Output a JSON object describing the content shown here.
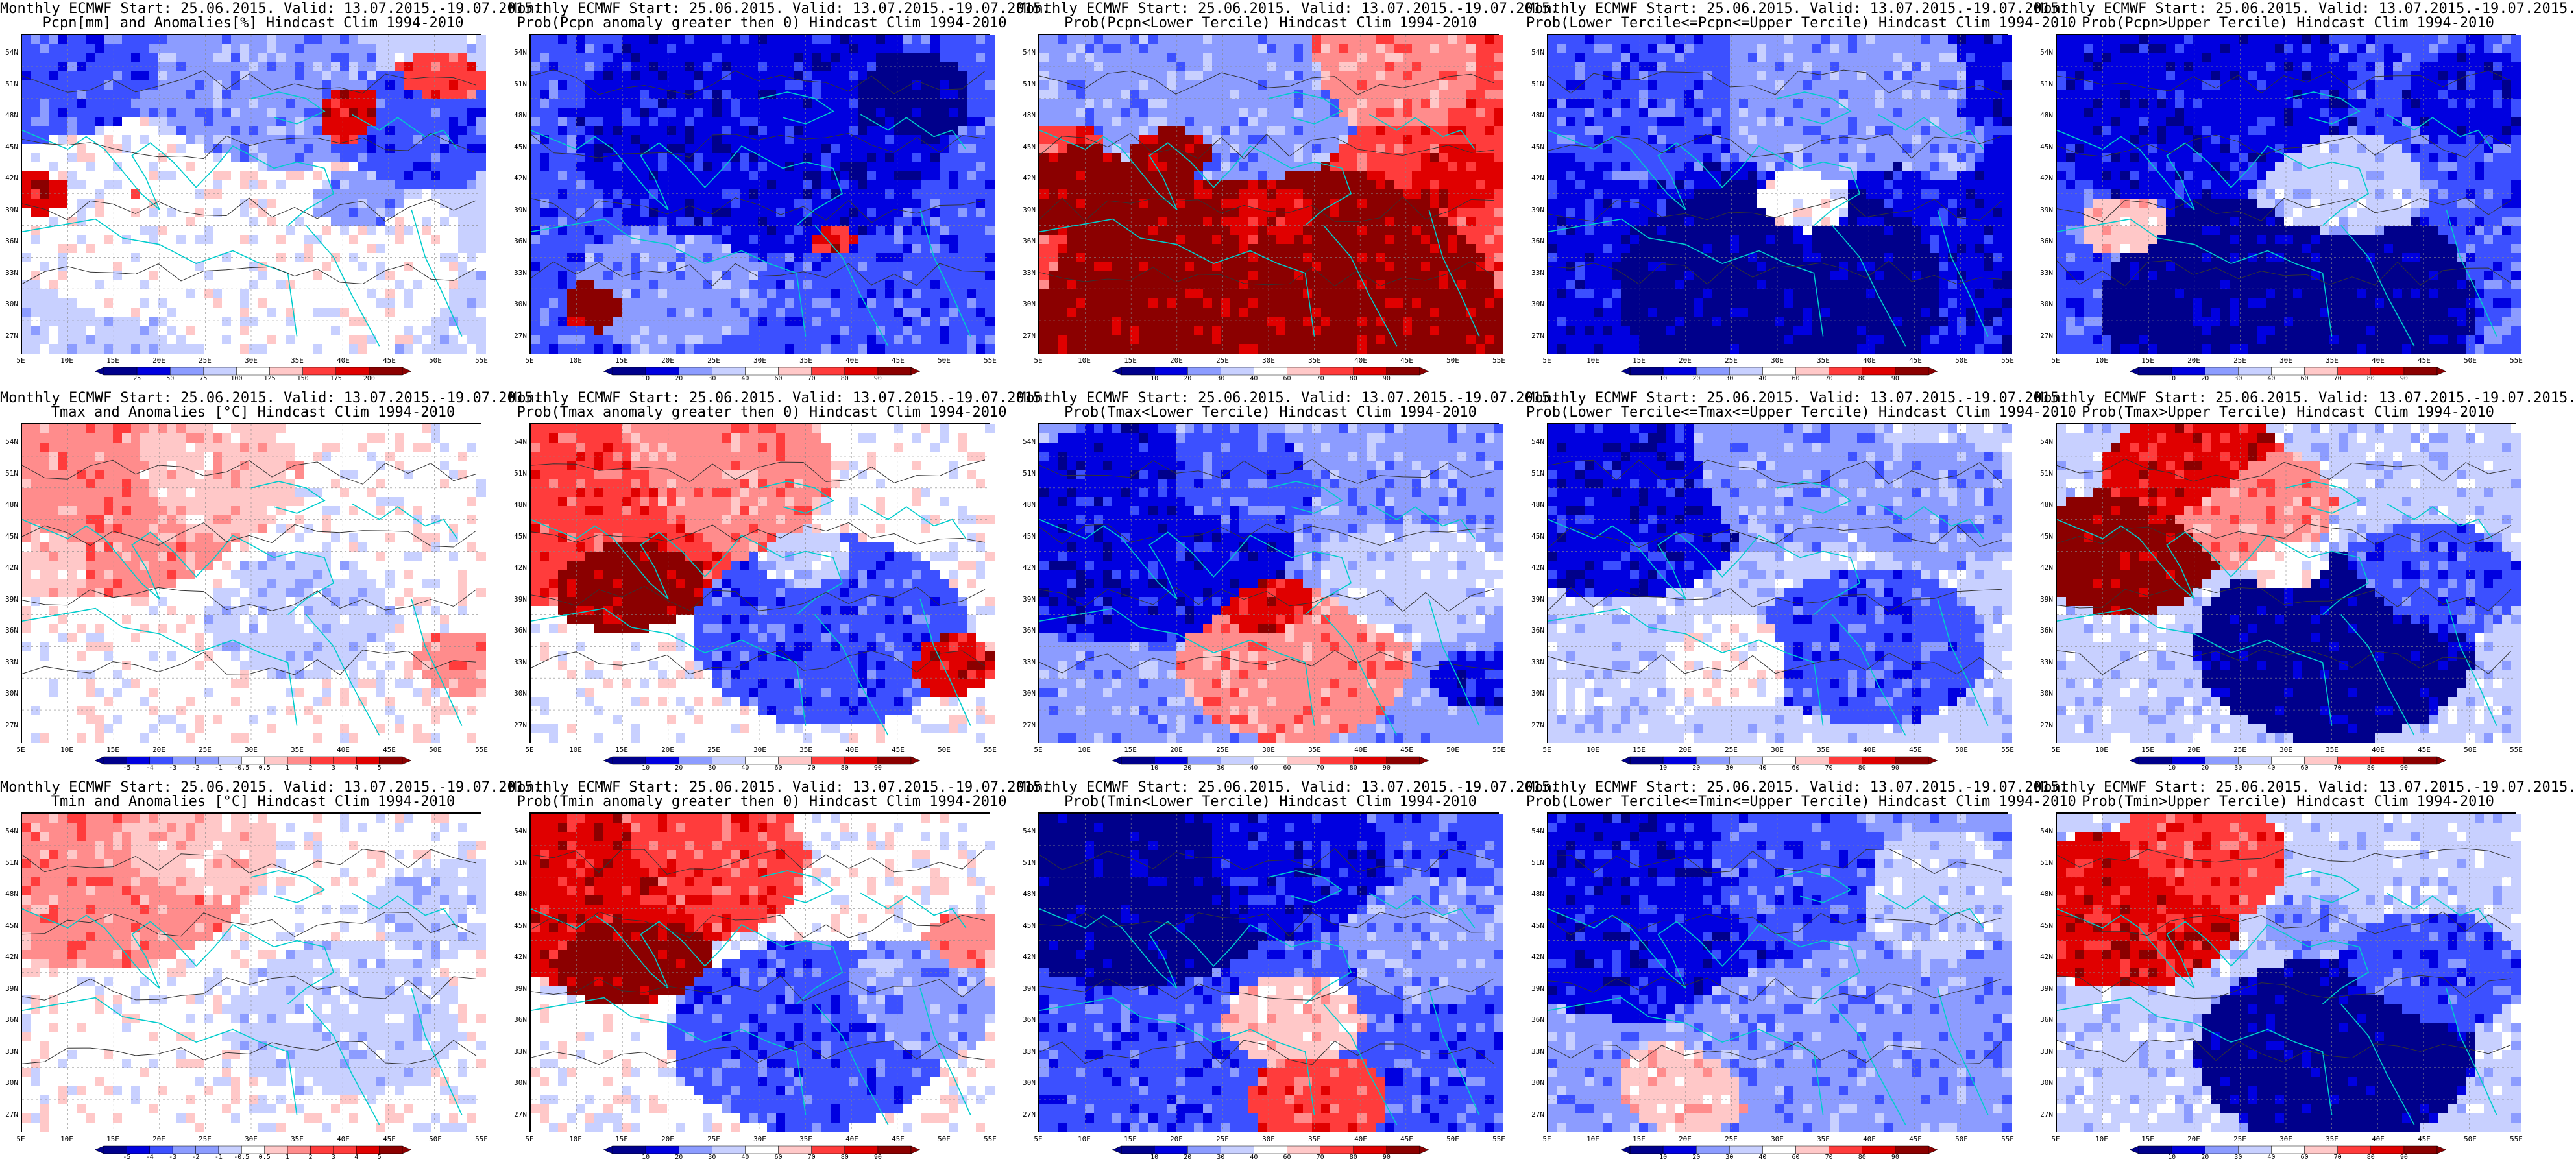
{
  "latitude_labels": [
    "54N",
    "51N",
    "48N",
    "45N",
    "42N",
    "39N",
    "36N",
    "33N",
    "30N",
    "27N"
  ],
  "longitude_labels": [
    "5E",
    "10E",
    "15E",
    "20E",
    "25E",
    "30E",
    "35E",
    "40E",
    "45E",
    "50E",
    "55E"
  ],
  "colors": {
    "blue_deep": "#00008b",
    "blue": "#0000e0",
    "blue_mid": "#3c50ff",
    "blue_light": "#8c9cff",
    "blue_pale": "#c8d0ff",
    "white": "#ffffff",
    "red_pale": "#ffc8c8",
    "red_light": "#ff8c8c",
    "red": "#ff3c3c",
    "red_mid": "#e00000",
    "red_deep": "#8b0000",
    "coast": "#00cccc",
    "contour": "#333333"
  },
  "rows": [
    {
      "variable": "Pcpn",
      "panels": [
        {
          "title1": "Monthly ECMWF Start: 25.06.2015. Valid: 13.07.2015.-19.07.2015.",
          "title2": "Pcpn[mm] and Anomalies[%] Hindcast Clim 1994-2010",
          "colorbar": [
            "25",
            "50",
            "75",
            "100",
            "125",
            "150",
            "175",
            "200"
          ],
          "pattern": "pcpn_anom"
        },
        {
          "title1": "Monthly ECMWF Start: 25.06.2015. Valid: 13.07.2015.-19.07.2015.",
          "title2": "Prob(Pcpn anomaly greater then 0) Hindcast Clim 1994-2010",
          "colorbar": [
            "10",
            "20",
            "30",
            "40",
            "60",
            "70",
            "80",
            "90"
          ],
          "pattern": "pcpn_pos"
        },
        {
          "title1": "Monthly ECMWF Start: 25.06.2015. Valid: 13.07.2015.-19.07.2015.",
          "title2": "Prob(Pcpn<Lower Tercile) Hindcast Clim 1994-2010",
          "colorbar": [
            "10",
            "20",
            "30",
            "40",
            "60",
            "70",
            "80",
            "90"
          ],
          "pattern": "pcpn_low"
        },
        {
          "title1": "Monthly ECMWF Start: 25.06.2015. Valid: 13.07.2015.-19.07.2015.",
          "title2": "Prob(Lower Tercile<=Pcpn<=Upper Tercile) Hindcast Clim 1994-2010",
          "colorbar": [
            "10",
            "20",
            "30",
            "40",
            "60",
            "70",
            "80",
            "90"
          ],
          "pattern": "pcpn_mid"
        },
        {
          "title1": "Monthly ECMWF Start: 25.06.2015. Valid: 13.07.2015.-19.07.2015.",
          "title2": "Prob(Pcpn>Upper Tercile) Hindcast Clim 1994-2010",
          "colorbar": [
            "10",
            "20",
            "30",
            "40",
            "60",
            "70",
            "80",
            "90"
          ],
          "pattern": "pcpn_up"
        }
      ]
    },
    {
      "variable": "Tmax",
      "panels": [
        {
          "title1": "Monthly ECMWF Start: 25.06.2015. Valid: 13.07.2015.-19.07.2015.",
          "title2": "Tmax and Anomalies [°C] Hindcast Clim 1994-2010",
          "colorbar": [
            "-5",
            "-4",
            "-3",
            "-2",
            "-1",
            "-0.5",
            "0.5",
            "1",
            "2",
            "3",
            "4",
            "5"
          ],
          "pattern": "tmax_anom"
        },
        {
          "title1": "Monthly ECMWF Start: 25.06.2015. Valid: 13.07.2015.-19.07.2015.",
          "title2": "Prob(Tmax anomaly greater then 0) Hindcast Clim 1994-2010",
          "colorbar": [
            "10",
            "20",
            "30",
            "40",
            "60",
            "70",
            "80",
            "90"
          ],
          "pattern": "tmax_pos"
        },
        {
          "title1": "Monthly ECMWF Start: 25.06.2015. Valid: 13.07.2015.-19.07.2015.",
          "title2": "Prob(Tmax<Lower Tercile) Hindcast Clim 1994-2010",
          "colorbar": [
            "10",
            "20",
            "30",
            "40",
            "60",
            "70",
            "80",
            "90"
          ],
          "pattern": "tmax_low"
        },
        {
          "title1": "Monthly ECMWF Start: 25.06.2015. Valid: 13.07.2015.-19.07.2015.",
          "title2": "Prob(Lower Tercile<=Tmax<=Upper Tercile) Hindcast Clim 1994-2010",
          "colorbar": [
            "10",
            "20",
            "30",
            "40",
            "60",
            "70",
            "80",
            "90"
          ],
          "pattern": "tmax_mid"
        },
        {
          "title1": "Monthly ECMWF Start: 25.06.2015. Valid: 13.07.2015.-19.07.2015.",
          "title2": "Prob(Tmax>Upper Tercile) Hindcast Clim 1994-2010",
          "colorbar": [
            "10",
            "20",
            "30",
            "40",
            "60",
            "70",
            "80",
            "90"
          ],
          "pattern": "tmax_up"
        }
      ]
    },
    {
      "variable": "Tmin",
      "panels": [
        {
          "title1": "Monthly ECMWF Start: 25.06.2015. Valid: 13.07.2015.-19.07.2015.",
          "title2": "Tmin and Anomalies [°C] Hindcast Clim 1994-2010",
          "colorbar": [
            "-5",
            "-4",
            "-3",
            "-2",
            "-1",
            "-0.5",
            "0.5",
            "1",
            "2",
            "3",
            "4",
            "5"
          ],
          "pattern": "tmin_anom"
        },
        {
          "title1": "Monthly ECMWF Start: 25.06.2015. Valid: 13.07.2015.-19.07.2015.",
          "title2": "Prob(Tmin anomaly greater then 0) Hindcast Clim 1994-2010",
          "colorbar": [
            "10",
            "20",
            "30",
            "40",
            "60",
            "70",
            "80",
            "90"
          ],
          "pattern": "tmin_pos"
        },
        {
          "title1": "Monthly ECMWF Start: 25.06.2015. Valid: 13.07.2015.-19.07.2015.",
          "title2": "Prob(Tmin<Lower Tercile) Hindcast Clim 1994-2010",
          "colorbar": [
            "10",
            "20",
            "30",
            "40",
            "60",
            "70",
            "80",
            "90"
          ],
          "pattern": "tmin_low"
        },
        {
          "title1": "Monthly ECMWF Start: 25.06.2015. Valid: 13.07.2015.-19.07.2015.",
          "title2": "Prob(Lower Tercile<=Tmin<=Upper Tercile) Hindcast Clim 1994-2010",
          "colorbar": [
            "10",
            "20",
            "30",
            "40",
            "60",
            "70",
            "80",
            "90"
          ],
          "pattern": "tmin_mid"
        },
        {
          "title1": "Monthly ECMWF Start: 25.06.2015. Valid: 13.07.2015.-19.07.2015.",
          "title2": "Prob(Tmin>Upper Tercile) Hindcast Clim 1994-2010",
          "colorbar": [
            "10",
            "20",
            "30",
            "40",
            "60",
            "70",
            "80",
            "90"
          ],
          "pattern": "tmin_up"
        }
      ]
    }
  ]
}
